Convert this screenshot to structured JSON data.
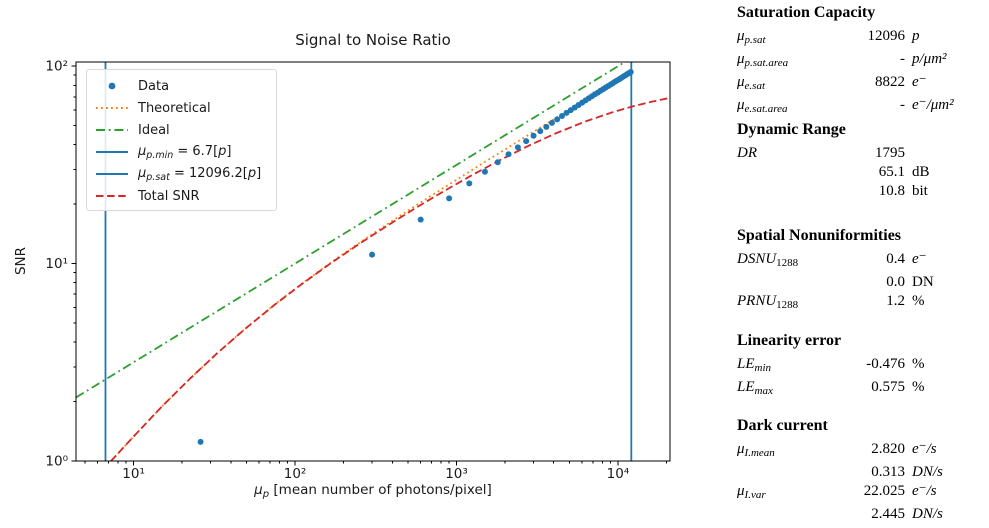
{
  "chart_data": {
    "type": "line",
    "title": "Signal to Noise Ratio",
    "xlabel": "μp [mean number of photons/pixel]",
    "xlabel_parts": {
      "mu": "μ",
      "sub": "p",
      "rest": " [mean number of photons/pixel]"
    },
    "ylabel": "SNR",
    "xscale": "log",
    "yscale": "log",
    "xlim": [
      4.4,
      21000
    ],
    "ylim": [
      1,
      105
    ],
    "grid": false,
    "legend_position": "upper left",
    "x_ticks": [
      {
        "v": 10,
        "label": "10¹"
      },
      {
        "v": 100,
        "label": "10²"
      },
      {
        "v": 1000,
        "label": "10³"
      },
      {
        "v": 10000,
        "label": "10⁴"
      }
    ],
    "y_ticks": [
      {
        "v": 1,
        "label": "10⁰"
      },
      {
        "v": 10,
        "label": "10¹"
      },
      {
        "v": 100,
        "label": "10²"
      }
    ],
    "series": [
      {
        "name": "Theoretical",
        "type": "line",
        "style": "dotted",
        "color": "#ff7f0e",
        "points": [
          [
            7.25,
            1.0
          ],
          [
            10,
            1.33
          ],
          [
            15,
            1.89
          ],
          [
            22,
            2.58
          ],
          [
            33,
            3.52
          ],
          [
            50,
            4.74
          ],
          [
            75,
            6.22
          ],
          [
            110,
            7.91
          ],
          [
            165,
            10.06
          ],
          [
            250,
            12.73
          ],
          [
            370,
            15.78
          ],
          [
            550,
            19.49
          ],
          [
            820,
            24.0
          ],
          [
            1230,
            29.58
          ],
          [
            1850,
            36.43
          ],
          [
            2770,
            44.7
          ],
          [
            4150,
            54.81
          ],
          [
            6220,
            67.19
          ],
          [
            9330,
            82.36
          ],
          [
            12096,
            93.81
          ]
        ]
      },
      {
        "name": "Ideal",
        "type": "line",
        "style": "dashdot",
        "color": "#2ca02c",
        "points": [
          [
            4.4,
            2.098
          ],
          [
            12000,
            109.5
          ]
        ]
      },
      {
        "name": "mu_p_min",
        "type": "vline",
        "color": "#1f77b4",
        "x": 6.7
      },
      {
        "name": "mu_p_sat",
        "type": "vline",
        "color": "#1f77b4",
        "x": 12096.2
      },
      {
        "name": "Total SNR",
        "type": "line",
        "style": "dashed",
        "color": "#d62728",
        "points": [
          [
            7.25,
            1.0
          ],
          [
            10,
            1.33
          ],
          [
            15,
            1.89
          ],
          [
            22,
            2.58
          ],
          [
            33,
            3.52
          ],
          [
            50,
            4.73
          ],
          [
            75,
            6.2
          ],
          [
            110,
            7.87
          ],
          [
            165,
            9.99
          ],
          [
            250,
            12.59
          ],
          [
            370,
            15.5
          ],
          [
            550,
            18.98
          ],
          [
            820,
            23.07
          ],
          [
            1230,
            27.87
          ],
          [
            1850,
            33.38
          ],
          [
            2770,
            39.38
          ],
          [
            4150,
            45.8
          ],
          [
            6220,
            52.31
          ],
          [
            9330,
            58.57
          ],
          [
            12096,
            62.29
          ],
          [
            16000,
            65.97
          ],
          [
            21000,
            69.12
          ]
        ]
      },
      {
        "name": "Data",
        "type": "scatter",
        "color": "#1f77b4",
        "points": [
          [
            26,
            1.25
          ],
          [
            300,
            11.1
          ],
          [
            600,
            16.7
          ],
          [
            900,
            21.4
          ],
          [
            1200,
            25.5
          ],
          [
            1500,
            29.2
          ],
          [
            1800,
            32.6
          ],
          [
            2100,
            35.8
          ],
          [
            2400,
            38.8
          ],
          [
            2700,
            41.7
          ],
          [
            3000,
            44.4
          ],
          [
            3300,
            46.9
          ],
          [
            3600,
            49.3
          ],
          [
            3900,
            51.6
          ],
          [
            4200,
            53.8
          ],
          [
            4500,
            55.9
          ],
          [
            4800,
            58.0
          ],
          [
            5100,
            59.9
          ],
          [
            5400,
            61.8
          ],
          [
            5700,
            63.6
          ],
          [
            6000,
            65.4
          ],
          [
            6300,
            67.1
          ],
          [
            6600,
            68.8
          ],
          [
            6900,
            70.4
          ],
          [
            7200,
            72.1
          ],
          [
            7500,
            73.5
          ],
          [
            7800,
            75.1
          ],
          [
            8100,
            76.5
          ],
          [
            8400,
            78.0
          ],
          [
            8700,
            79.4
          ],
          [
            9000,
            80.7
          ],
          [
            9300,
            82.1
          ],
          [
            9600,
            83.5
          ],
          [
            9900,
            84.8
          ],
          [
            10200,
            86.0
          ],
          [
            10500,
            87.3
          ],
          [
            10800,
            88.6
          ],
          [
            11100,
            89.8
          ],
          [
            11400,
            91.1
          ],
          [
            11700,
            92.2
          ],
          [
            12000,
            93.4
          ]
        ]
      }
    ]
  },
  "legend": {
    "entries": [
      {
        "marker": "dot",
        "color": "#1f77b4",
        "segments": [
          {
            "t": "Data"
          }
        ]
      },
      {
        "marker": "dotted",
        "color": "#ff7f0e",
        "segments": [
          {
            "t": "Theoretical"
          }
        ]
      },
      {
        "marker": "dashdot",
        "color": "#2ca02c",
        "segments": [
          {
            "t": "Ideal"
          }
        ]
      },
      {
        "marker": "solid",
        "color": "#1f77b4",
        "segments": [
          {
            "t": "μ",
            "it": 1
          },
          {
            "t": "p.min",
            "it": 1,
            "sub": 1
          },
          {
            "t": " = 6.7["
          },
          {
            "t": "p",
            "it": 1
          },
          {
            "t": "]"
          }
        ]
      },
      {
        "marker": "solid",
        "color": "#1f77b4",
        "segments": [
          {
            "t": "μ",
            "it": 1
          },
          {
            "t": "p.sat",
            "it": 1,
            "sub": 1
          },
          {
            "t": " = 12096.2["
          },
          {
            "t": "p",
            "it": 1
          },
          {
            "t": "]"
          }
        ]
      },
      {
        "marker": "dashed",
        "color": "#d62728",
        "segments": [
          {
            "t": "Total SNR"
          }
        ]
      }
    ]
  },
  "stats": {
    "sections": [
      {
        "title": "Saturation Capacity",
        "rows": [
          {
            "label": [
              {
                "t": "μ",
                "it": 1
              },
              {
                "t": "p.sat",
                "it": 1,
                "sub": 1
              }
            ],
            "value": "12096",
            "unit": "p",
            "unit_it": 1
          },
          {
            "label": [
              {
                "t": "μ",
                "it": 1
              },
              {
                "t": "p.sat.area",
                "it": 1,
                "sub": 1
              }
            ],
            "value": "-",
            "unit": "p/μm²",
            "unit_it": 1
          },
          {
            "label": [
              {
                "t": "μ",
                "it": 1
              },
              {
                "t": "e.sat",
                "it": 1,
                "sub": 1
              }
            ],
            "value": "8822",
            "unit": "e⁻",
            "unit_it": 1
          },
          {
            "label": [
              {
                "t": "μ",
                "it": 1
              },
              {
                "t": "e.sat.area",
                "it": 1,
                "sub": 1
              }
            ],
            "value": "-",
            "unit": "e⁻/μm²",
            "unit_it": 1
          }
        ]
      },
      {
        "title": "Dynamic Range",
        "rows": [
          {
            "label": [
              {
                "t": "DR",
                "it": 1
              }
            ],
            "value": "1795",
            "unit": "",
            "unit_it": 0
          },
          {
            "label": [],
            "value": "65.1",
            "unit": "dB",
            "unit_it": 0
          },
          {
            "label": [],
            "value": "10.8",
            "unit": "bit",
            "unit_it": 0
          }
        ]
      },
      {
        "title": "Spatial Nonuniformities",
        "rows": [
          {
            "label": [
              {
                "t": "DSNU",
                "it": 1
              },
              {
                "t": "1288",
                "sub": 1
              }
            ],
            "value": "0.4",
            "unit": "e⁻",
            "unit_it": 1
          },
          {
            "label": [],
            "value": "0.0",
            "unit": "DN",
            "unit_it": 0
          },
          {
            "label": [
              {
                "t": "PRNU",
                "it": 1
              },
              {
                "t": "1288",
                "sub": 1
              }
            ],
            "value": "1.2",
            "unit": "%",
            "unit_it": 0
          }
        ]
      },
      {
        "title": "Linearity error",
        "rows": [
          {
            "label": [
              {
                "t": "LE",
                "it": 1
              },
              {
                "t": "min",
                "it": 1,
                "sub": 1
              }
            ],
            "value": "-0.476",
            "unit": "%",
            "unit_it": 0
          },
          {
            "label": [
              {
                "t": "LE",
                "it": 1
              },
              {
                "t": "max",
                "it": 1,
                "sub": 1
              }
            ],
            "value": "0.575",
            "unit": "%",
            "unit_it": 0
          }
        ]
      },
      {
        "title": "Dark current",
        "rows": [
          {
            "label": [
              {
                "t": "μ",
                "it": 1
              },
              {
                "t": "I.mean",
                "it": 1,
                "sub": 1
              }
            ],
            "value": "2.820",
            "unit": "e⁻/s",
            "unit_it": 1
          },
          {
            "label": [],
            "value": "0.313",
            "unit": "DN/s",
            "unit_it": 1
          },
          {
            "label": [
              {
                "t": "μ",
                "it": 1
              },
              {
                "t": "I.var",
                "it": 1,
                "sub": 1
              }
            ],
            "value": "22.025",
            "unit": "e⁻/s",
            "unit_it": 1
          },
          {
            "label": [],
            "value": "2.445",
            "unit": "DN/s",
            "unit_it": 1
          }
        ]
      }
    ]
  }
}
